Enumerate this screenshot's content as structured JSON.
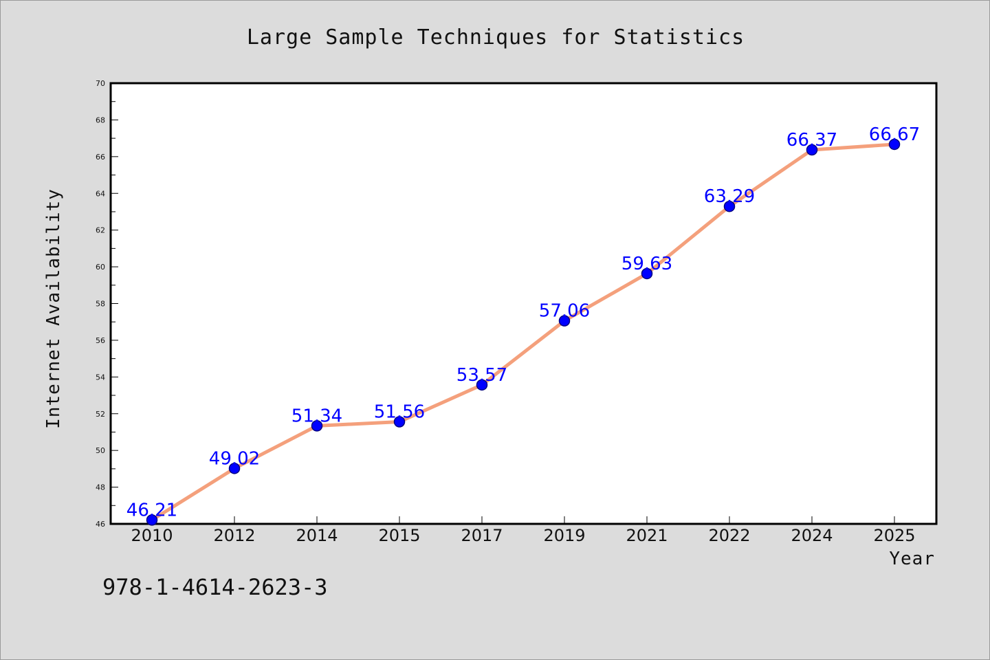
{
  "chart_data": {
    "type": "line",
    "title": "Large Sample Techniques for Statistics",
    "xlabel": "Year",
    "ylabel": "Internet Availability",
    "categories": [
      "2010",
      "2012",
      "2014",
      "2015",
      "2017",
      "2019",
      "2021",
      "2022",
      "2024",
      "2025"
    ],
    "series": [
      {
        "values": [
          46.21,
          49.02,
          51.34,
          51.56,
          53.57,
          57.06,
          59.63,
          63.29,
          66.37,
          66.67
        ],
        "labels": [
          "46.21",
          "49.02",
          "51.34",
          "51.56",
          "53.57",
          "57.06",
          "59.63",
          "63.29",
          "66.37",
          "66.67"
        ]
      }
    ],
    "ylim": [
      46,
      70
    ],
    "yticks": [
      "46",
      "48",
      "50",
      "52",
      "54",
      "56",
      "58",
      "60",
      "62",
      "64",
      "66",
      "68",
      "70"
    ],
    "grid": false,
    "legend": "none",
    "colors": {
      "line": "#f4a07c",
      "marker": "#0000ff",
      "marker_edge": "#000080",
      "data_label": "#0000ff",
      "plot_background": "#ffffff",
      "figure_background": "#dcdcdc"
    }
  },
  "footer": {
    "isbn": "978-1-4614-2623-3"
  }
}
